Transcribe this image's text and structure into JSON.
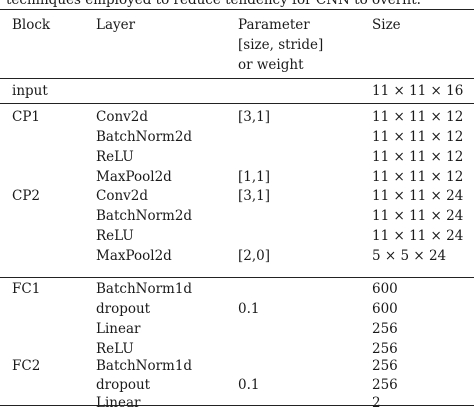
{
  "caption": "techniques employed to reduce tendency for CNN to overfit.",
  "header": {
    "block": "Block",
    "layer": "Layer",
    "param_lines": [
      "Parameter",
      "[size, stride]",
      "or weight"
    ],
    "size": "Size"
  },
  "input_row": {
    "block": "input",
    "layer": "",
    "param": "",
    "size": "11 × 11 × 16"
  },
  "rows": [
    {
      "block": "CP1",
      "layer": "Conv2d",
      "param": "[3,1]",
      "size": "11 × 11 × 12"
    },
    {
      "block": "",
      "layer": "BatchNorm2d",
      "param": "",
      "size": "11 × 11 × 12"
    },
    {
      "block": "",
      "layer": "ReLU",
      "param": "",
      "size": "11 × 11 × 12"
    },
    {
      "block": "",
      "layer": "MaxPool2d",
      "param": "[1,1]",
      "size": "11 × 11 × 12"
    },
    {
      "block": "CP2",
      "layer": "Conv2d",
      "param": "[3,1]",
      "size": "11 × 11 × 24"
    },
    {
      "block": "",
      "layer": "BatchNorm2d",
      "param": "",
      "size": "11 × 11 × 24"
    },
    {
      "block": "",
      "layer": "ReLU",
      "param": "",
      "size": "11 × 11 × 24"
    },
    {
      "block": "",
      "layer": "MaxPool2d",
      "param": "[2,0]",
      "size": "5 × 5 × 24"
    },
    {
      "block": "FC1",
      "layer": "BatchNorm1d",
      "param": "",
      "size": "600"
    },
    {
      "block": "",
      "layer": "dropout",
      "param": "0.1",
      "size": "600"
    },
    {
      "block": "",
      "layer": "Linear",
      "param": "",
      "size": "256"
    },
    {
      "block": "",
      "layer": "ReLU",
      "param": "",
      "size": "256"
    },
    {
      "block": "FC2",
      "layer": "BatchNorm1d",
      "param": "",
      "size": "256"
    },
    {
      "block": "",
      "layer": "dropout",
      "param": "0.1",
      "size": "256"
    },
    {
      "block": "",
      "layer": "Linear",
      "param": "",
      "size": "2"
    }
  ]
}
